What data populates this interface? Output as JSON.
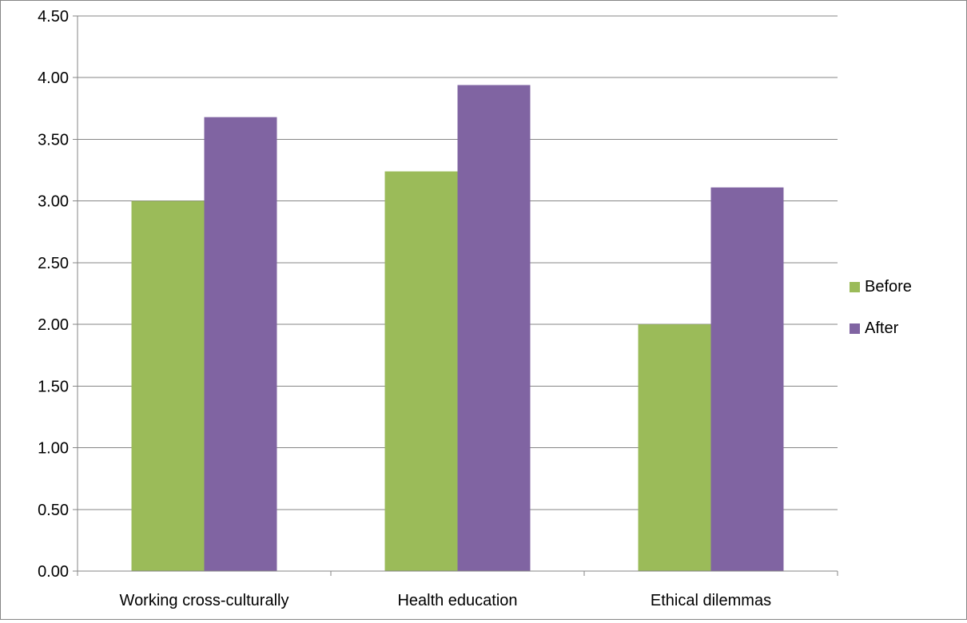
{
  "chart_data": {
    "type": "bar",
    "title": "",
    "xlabel": "",
    "ylabel": "",
    "categories": [
      "Working cross-culturally",
      "Health education",
      "Ethical dilemmas"
    ],
    "series": [
      {
        "name": "Before",
        "values": [
          3.0,
          3.24,
          2.0
        ],
        "color": "#9BBB59"
      },
      {
        "name": "After",
        "values": [
          3.68,
          3.94,
          3.11
        ],
        "color": "#8064A2"
      }
    ],
    "ylim": [
      0,
      4.5
    ],
    "y_ticks": [
      "0.00",
      "0.50",
      "1.00",
      "1.50",
      "2.00",
      "2.50",
      "3.00",
      "3.50",
      "4.00",
      "4.50"
    ],
    "grid": "horizontal major gridlines",
    "legend_position": "right"
  }
}
